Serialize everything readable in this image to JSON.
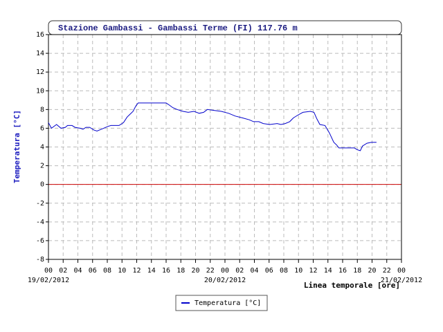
{
  "chart_data": {
    "type": "line",
    "title": "Stazione Gambassi - Gambassi Terme (FI) 117.76 m",
    "y_label": "Temperatura [°C]",
    "x_label": "Linea temporale [ore]",
    "xlim": [
      0,
      48
    ],
    "ylim": [
      -8,
      16
    ],
    "yticks": [
      -8,
      -6,
      -4,
      -2,
      0,
      2,
      4,
      6,
      8,
      10,
      12,
      14,
      16
    ],
    "xticks": [
      {
        "value": 0,
        "label": "00"
      },
      {
        "value": 2,
        "label": "02"
      },
      {
        "value": 4,
        "label": "04"
      },
      {
        "value": 6,
        "label": "06"
      },
      {
        "value": 8,
        "label": "08"
      },
      {
        "value": 10,
        "label": "10"
      },
      {
        "value": 12,
        "label": "12"
      },
      {
        "value": 14,
        "label": "14"
      },
      {
        "value": 16,
        "label": "16"
      },
      {
        "value": 18,
        "label": "18"
      },
      {
        "value": 20,
        "label": "20"
      },
      {
        "value": 22,
        "label": "22"
      },
      {
        "value": 24,
        "label": "00"
      },
      {
        "value": 26,
        "label": "02"
      },
      {
        "value": 28,
        "label": "04"
      },
      {
        "value": 30,
        "label": "06"
      },
      {
        "value": 32,
        "label": "08"
      },
      {
        "value": 34,
        "label": "10"
      },
      {
        "value": 36,
        "label": "12"
      },
      {
        "value": 38,
        "label": "14"
      },
      {
        "value": 40,
        "label": "16"
      },
      {
        "value": 42,
        "label": "18"
      },
      {
        "value": 44,
        "label": "20"
      },
      {
        "value": 46,
        "label": "22"
      },
      {
        "value": 48,
        "label": "00"
      }
    ],
    "date_labels": [
      {
        "value": 0,
        "label": "19/02/2012"
      },
      {
        "value": 24,
        "label": "20/02/2012"
      },
      {
        "value": 48,
        "label": "21/02/2012"
      }
    ],
    "grid": true,
    "zero_line_color": "#cc0000",
    "series": [
      {
        "name": "Temperatura [°C]",
        "color": "#0000cc",
        "x": [
          0,
          0.4,
          1.1,
          1.7,
          2.3,
          2.6,
          3.2,
          3.6,
          4.3,
          4.7,
          5.1,
          5.6,
          6.2,
          6.6,
          7.2,
          7.5,
          8.1,
          8.5,
          9.6,
          10.2,
          10.7,
          11.1,
          11.5,
          11.9,
          12.2,
          16.0,
          16.4,
          16.9,
          17.5,
          18.3,
          19.0,
          19.8,
          20.5,
          21.1,
          21.6,
          22.6,
          23.5,
          24.5,
          25.4,
          26.4,
          27.3,
          27.9,
          28.6,
          29.2,
          30.1,
          31.1,
          31.6,
          32.2,
          32.8,
          33.3,
          33.9,
          34.6,
          35.6,
          36.1,
          36.5,
          36.9,
          37.6,
          38.2,
          38.8,
          39.2,
          39.5,
          41.6,
          42.0,
          42.4,
          42.7,
          43.3,
          43.9,
          44.6
        ],
        "values": [
          6.6,
          6.0,
          6.4,
          6.0,
          6.1,
          6.3,
          6.3,
          6.1,
          6.0,
          5.9,
          6.1,
          6.1,
          5.8,
          5.7,
          5.9,
          6.0,
          6.2,
          6.3,
          6.3,
          6.6,
          7.2,
          7.5,
          7.8,
          8.4,
          8.7,
          8.7,
          8.5,
          8.2,
          8.0,
          7.8,
          7.7,
          7.8,
          7.6,
          7.7,
          8.0,
          7.9,
          7.8,
          7.6,
          7.3,
          7.1,
          6.9,
          6.7,
          6.7,
          6.5,
          6.4,
          6.5,
          6.4,
          6.5,
          6.7,
          7.1,
          7.4,
          7.7,
          7.8,
          7.7,
          7.0,
          6.4,
          6.3,
          5.5,
          4.5,
          4.2,
          3.9,
          3.9,
          3.7,
          3.6,
          4.1,
          4.4,
          4.5,
          4.5
        ]
      }
    ]
  }
}
